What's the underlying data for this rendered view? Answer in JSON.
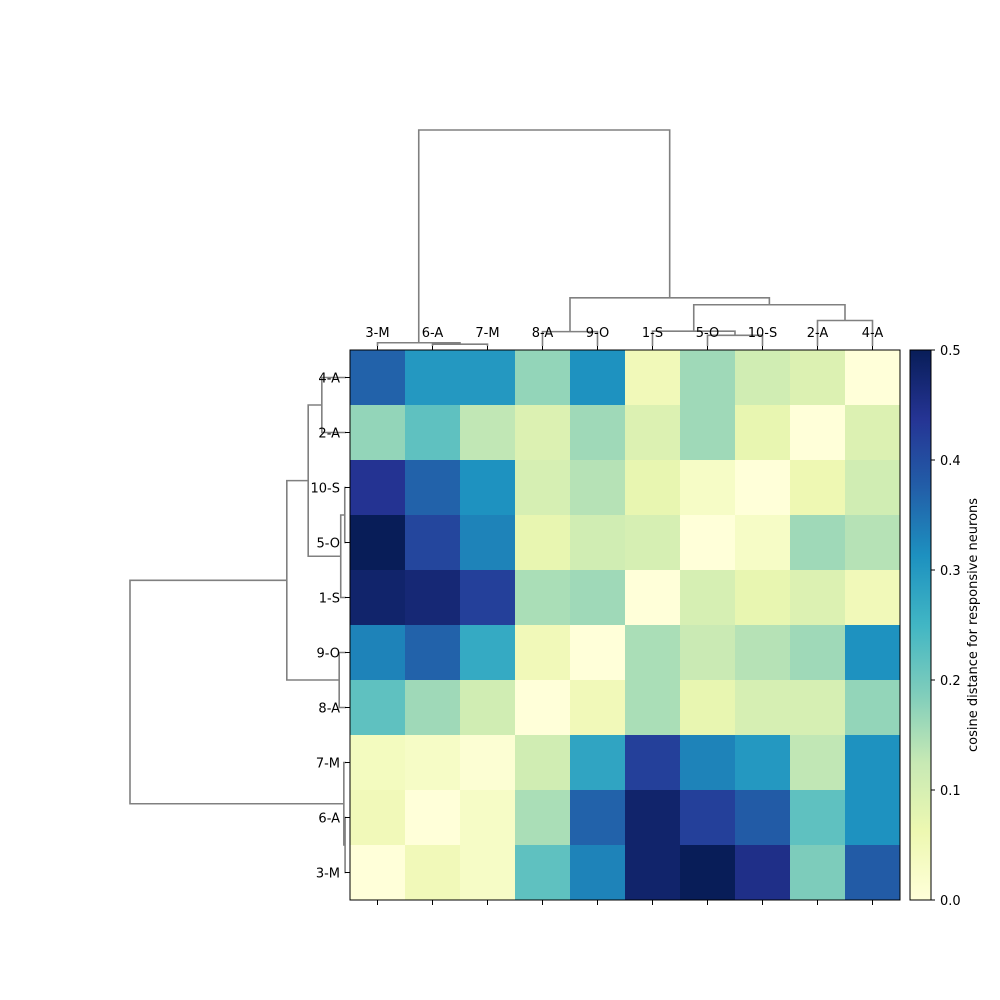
{
  "chart_data": {
    "type": "heatmap",
    "title": "",
    "xlabel": "",
    "ylabel": "",
    "x_categories": [
      "3-M",
      "6-A",
      "7-M",
      "8-A",
      "9-O",
      "1-S",
      "5-O",
      "10-S",
      "2-A",
      "4-A"
    ],
    "y_categories": [
      "4-A",
      "2-A",
      "10-S",
      "5-O",
      "1-S",
      "9-O",
      "8-A",
      "7-M",
      "6-A",
      "3-M"
    ],
    "values": [
      [
        0.37,
        0.3,
        0.3,
        0.17,
        0.31,
        0.05,
        0.16,
        0.11,
        0.09,
        0.0
      ],
      [
        0.17,
        0.22,
        0.13,
        0.09,
        0.16,
        0.09,
        0.16,
        0.07,
        0.0,
        0.09
      ],
      [
        0.44,
        0.37,
        0.31,
        0.1,
        0.14,
        0.07,
        0.03,
        0.0,
        0.06,
        0.11
      ],
      [
        0.5,
        0.41,
        0.33,
        0.07,
        0.11,
        0.1,
        0.0,
        0.03,
        0.16,
        0.14
      ],
      [
        0.48,
        0.47,
        0.42,
        0.15,
        0.16,
        0.0,
        0.1,
        0.07,
        0.09,
        0.05
      ],
      [
        0.33,
        0.37,
        0.27,
        0.05,
        0.0,
        0.15,
        0.12,
        0.14,
        0.16,
        0.31
      ],
      [
        0.22,
        0.16,
        0.11,
        0.0,
        0.05,
        0.15,
        0.07,
        0.1,
        0.1,
        0.17
      ],
      [
        0.04,
        0.03,
        0.01,
        0.11,
        0.28,
        0.42,
        0.33,
        0.3,
        0.13,
        0.31
      ],
      [
        0.05,
        0.0,
        0.03,
        0.15,
        0.37,
        0.48,
        0.42,
        0.38,
        0.22,
        0.31
      ],
      [
        0.0,
        0.05,
        0.03,
        0.22,
        0.33,
        0.48,
        0.5,
        0.45,
        0.19,
        0.38
      ]
    ],
    "vmin": 0,
    "vmax": 0.5,
    "colormap": "YlGnBu",
    "colormap_stops": [
      "#ffffd9",
      "#edf8b1",
      "#c7e9b4",
      "#7fcdbb",
      "#41b6c4",
      "#1d91c0",
      "#225ea8",
      "#253494",
      "#081d58"
    ],
    "colorbar": {
      "label": "cosine distance for responsive neurons",
      "ticks": [
        "0.0",
        "0.1",
        "0.2",
        "0.3",
        "0.4",
        "0.5"
      ]
    },
    "dendrogram_color": "#808080",
    "column_dendrogram": {
      "links": [
        [
          1,
          2,
          0.004
        ],
        [
          0,
          10,
          0.007
        ],
        [
          6,
          7,
          0.023
        ],
        [
          5,
          12,
          0.032
        ],
        [
          3,
          4,
          0.031
        ],
        [
          8,
          9,
          0.055
        ],
        [
          13,
          15,
          0.089
        ],
        [
          14,
          16,
          0.104
        ],
        [
          11,
          17,
          0.466
        ]
      ]
    },
    "row_dendrogram": {
      "links": [
        [
          8,
          9,
          0.003
        ],
        [
          7,
          10,
          0.007
        ],
        [
          2,
          3,
          0.004
        ],
        [
          4,
          12,
          0.017
        ],
        [
          5,
          6,
          0.022
        ],
        [
          0,
          1,
          0.078
        ],
        [
          13,
          15,
          0.122
        ],
        [
          14,
          16,
          0.191
        ],
        [
          11,
          17,
          0.697
        ]
      ]
    }
  }
}
